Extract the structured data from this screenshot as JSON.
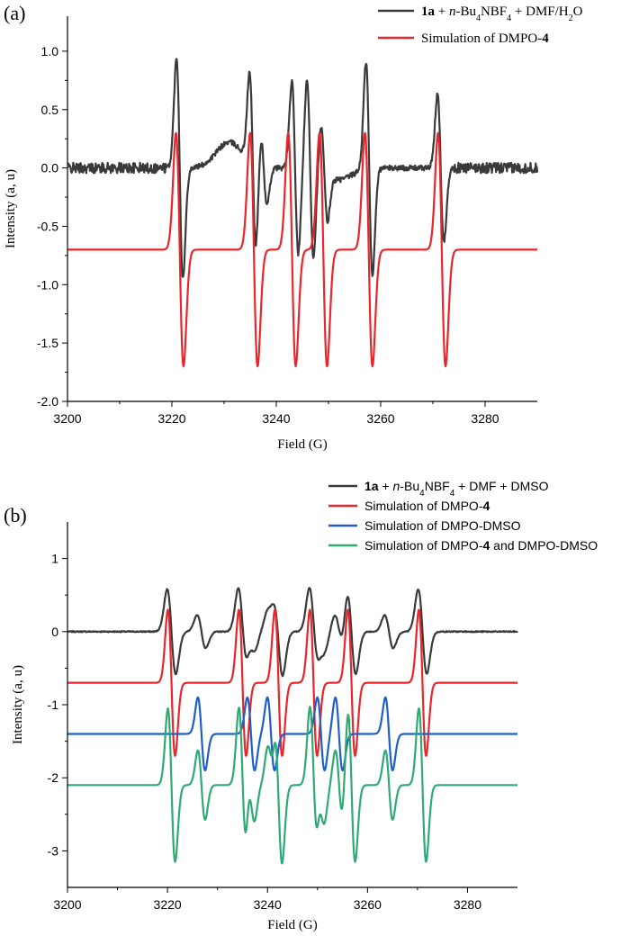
{
  "chart_data": [
    {
      "type": "line",
      "panel_label": "(a)",
      "xlabel": "Field (G)",
      "ylabel": "Intensity (a, u)",
      "xlim": [
        3200,
        3290
      ],
      "ylim": [
        -2.0,
        1.3
      ],
      "xticks": [
        3200,
        3220,
        3240,
        3260,
        3280
      ],
      "xtick_labels": [
        "3200",
        "3220",
        "3240",
        "3260",
        "3280"
      ],
      "yticks": [
        1.0,
        0.5,
        0.0,
        -0.5,
        -1.0,
        -1.5,
        -2.0
      ],
      "ytick_labels": [
        "1.0",
        "0.5",
        "0.0",
        "-0.5",
        "-1.0",
        "-1.5",
        "-2.0"
      ],
      "legend_position": "top-right",
      "series": [
        {
          "name": "1a + n-Bu4NBF4 + DMF/H2O",
          "legend_parts": [
            {
              "text": "1a",
              "bold": true
            },
            {
              "text": " + "
            },
            {
              "text": "n",
              "italic": true
            },
            {
              "text": "-Bu"
            },
            {
              "text": "4",
              "sub": true
            },
            {
              "text": "NBF"
            },
            {
              "text": "4",
              "sub": true
            },
            {
              "text": " + DMF/H"
            },
            {
              "text": "2",
              "sub": true
            },
            {
              "text": "O"
            }
          ],
          "color": "#3a3a3a",
          "offset": 0.0,
          "peaks": [
            {
              "center": 3221.5,
              "amplitude": 1.0,
              "min": -0.9
            },
            {
              "center": 3235.5,
              "amplitude": 0.85,
              "min": -0.65
            },
            {
              "center": 3237.6,
              "amplitude": 0.25,
              "min": -0.4
            },
            {
              "center": 3243.6,
              "amplitude": 0.82,
              "min": -0.65
            },
            {
              "center": 3246.5,
              "amplitude": 0.55,
              "min": -0.95
            },
            {
              "center": 3249.2,
              "amplitude": 0.5,
              "min": -0.28
            },
            {
              "center": 3257.8,
              "amplitude": 0.84,
              "min": -1.0
            },
            {
              "center": 3271.5,
              "amplitude": 0.62,
              "min": -0.65
            }
          ]
        },
        {
          "name": "Simulation of DMPO-4",
          "legend_parts": [
            {
              "text": "Simulation of DMPO-"
            },
            {
              "text": "4",
              "bold": true
            }
          ],
          "color": "#e8262b",
          "offset": -0.7,
          "peak_max": 0.3,
          "peak_min": -1.7,
          "line_centers": [
            3221.5,
            3235.7,
            3243.0,
            3249.0,
            3257.7,
            3271.7
          ]
        }
      ]
    },
    {
      "type": "line",
      "panel_label": "(b)",
      "xlabel": "Field (G)",
      "ylabel": "Intensity (a, u)",
      "xlim": [
        3200,
        3290
      ],
      "ylim": [
        -3.5,
        1.5
      ],
      "xticks": [
        3200,
        3220,
        3240,
        3260,
        3280
      ],
      "xtick_labels": [
        "3200",
        "3220",
        "3240",
        "3260",
        "3280"
      ],
      "yticks": [
        1,
        0,
        -1,
        -2,
        -3
      ],
      "ytick_labels": [
        "1",
        "0",
        "-1",
        "-2",
        "-3"
      ],
      "legend_position": "top-right",
      "series": [
        {
          "name": "1a + n-Bu4NBF4 + DMF + DMSO",
          "legend_parts": [
            {
              "text": "1a",
              "bold": true
            },
            {
              "text": " + "
            },
            {
              "text": "n",
              "italic": true
            },
            {
              "text": "-Bu"
            },
            {
              "text": "4",
              "sub": true
            },
            {
              "text": "NBF"
            },
            {
              "text": "4",
              "sub": true
            },
            {
              "text": " + DMF + DMSO"
            }
          ],
          "color": "#3a3a3a",
          "offset": 0.0
        },
        {
          "name": "Simulation of DMPO-4",
          "legend_parts": [
            {
              "text": "Simulation of DMPO-"
            },
            {
              "text": "4",
              "bold": true
            }
          ],
          "color": "#e8262b",
          "offset": -0.7,
          "peak_max": 0.3,
          "peak_min": -1.7,
          "line_centers": [
            3220.8,
            3235.0,
            3242.2,
            3249.2,
            3256.8,
            3271.0
          ]
        },
        {
          "name": "Simulation of DMPO-DMSO",
          "legend_parts": [
            {
              "text": "Simulation of DMPO-DMSO"
            }
          ],
          "color": "#1f5fc8",
          "offset": -1.4,
          "peak_max": -0.9,
          "peak_min": -1.9,
          "line_centers": [
            3226.8,
            3236.7,
            3240.7,
            3250.7,
            3254.3,
            3264.3
          ]
        },
        {
          "name": "Simulation of DMPO-4 and DMPO-DMSO",
          "legend_parts": [
            {
              "text": "Simulation of DMPO-"
            },
            {
              "text": "4",
              "bold": true
            },
            {
              "text": " and DMPO-DMSO"
            }
          ],
          "color": "#2eaa73",
          "offset": -2.1
        }
      ]
    }
  ]
}
